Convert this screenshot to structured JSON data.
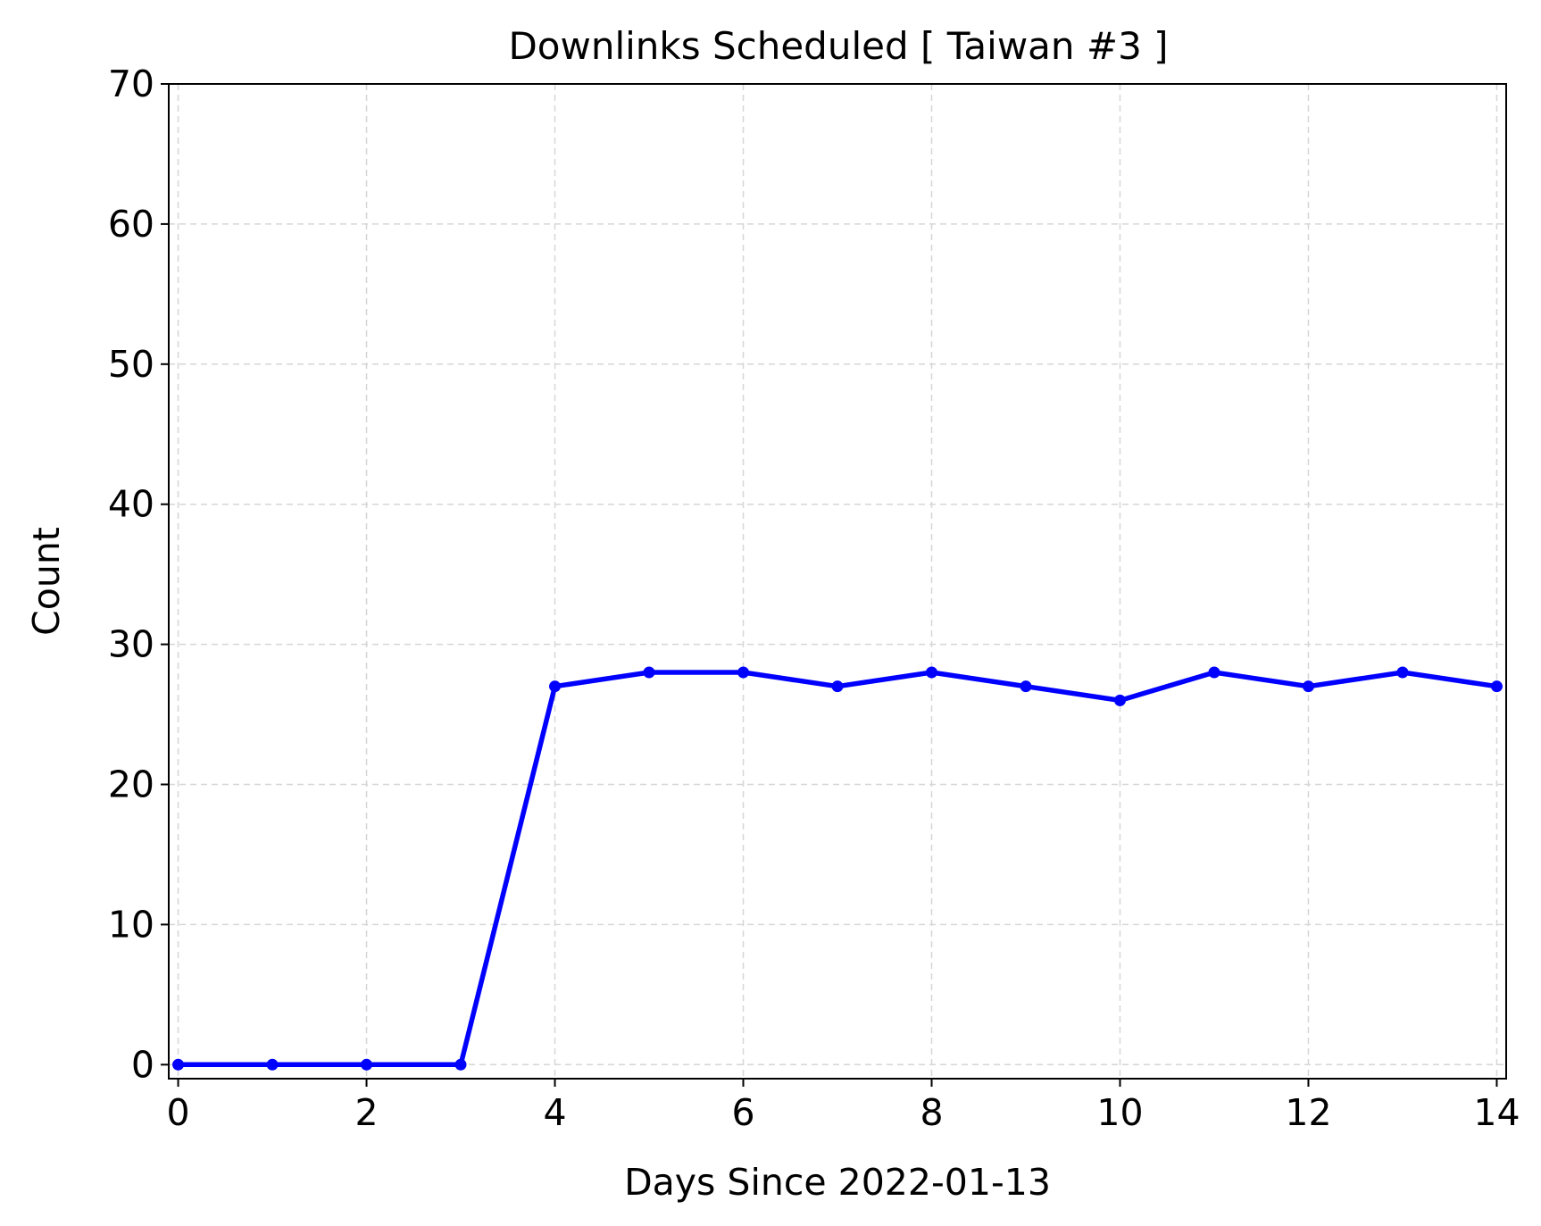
{
  "chart_data": {
    "type": "line",
    "title": "Downlinks Scheduled [ Taiwan #3 ]",
    "xlabel": "Days Since 2022-01-13",
    "ylabel": "Count",
    "xlim": [
      -0.1,
      14.1
    ],
    "ylim": [
      -1,
      70
    ],
    "xticks": [
      0,
      2,
      4,
      6,
      8,
      10,
      12,
      14
    ],
    "yticks": [
      0,
      10,
      20,
      30,
      40,
      50,
      60,
      70
    ],
    "grid": true,
    "series": [
      {
        "color": "#0000ff",
        "marker": "circle",
        "x": [
          0,
          1,
          2,
          3,
          4,
          5,
          6,
          7,
          8,
          9,
          10,
          11,
          12,
          13,
          14
        ],
        "y": [
          0,
          0,
          0,
          0,
          27,
          28,
          28,
          27,
          28,
          27,
          26,
          28,
          27,
          28,
          27
        ]
      }
    ]
  }
}
